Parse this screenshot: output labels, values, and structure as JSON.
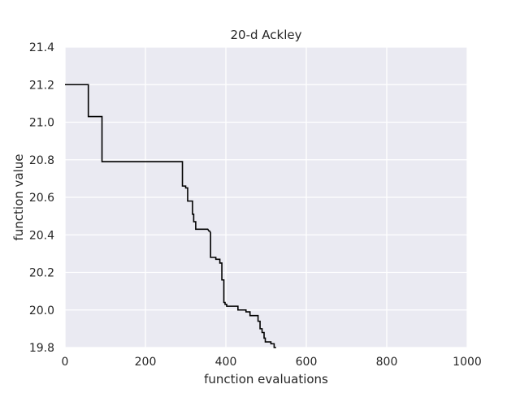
{
  "chart_data": {
    "type": "line",
    "title": "20-d Ackley",
    "xlabel": "function evaluations",
    "ylabel": "function value",
    "xlim": [
      0,
      1000
    ],
    "ylim": [
      19.8,
      21.4
    ],
    "xticks": [
      "0",
      "200",
      "400",
      "600",
      "800",
      "1000"
    ],
    "yticks": [
      "19.8",
      "20.0",
      "20.2",
      "20.4",
      "20.6",
      "20.8",
      "21.0",
      "21.2",
      "21.4"
    ],
    "grid": true,
    "legend": "none",
    "colors": {
      "line": "#000000",
      "background": "#eaeaf2",
      "grid": "#ffffff"
    },
    "series": [
      {
        "x": [
          0,
          58,
          58,
          92,
          92,
          292,
          292,
          300,
          300,
          305,
          305,
          317,
          317,
          320,
          320,
          325,
          325,
          355,
          358,
          360,
          362,
          362,
          375,
          375,
          385,
          385,
          390,
          390,
          395,
          395,
          398,
          398,
          402,
          402,
          430,
          430,
          450,
          450,
          460,
          460,
          480,
          480,
          485,
          485,
          490,
          490,
          495,
          495,
          498,
          498,
          512,
          512,
          520,
          520,
          525
        ],
        "y": [
          21.2,
          21.2,
          21.03,
          21.03,
          20.79,
          20.79,
          20.66,
          20.66,
          20.65,
          20.65,
          20.58,
          20.58,
          20.51,
          20.51,
          20.47,
          20.47,
          20.43,
          20.43,
          20.42,
          20.42,
          20.41,
          20.28,
          20.28,
          20.27,
          20.27,
          20.25,
          20.25,
          20.16,
          20.16,
          20.04,
          20.04,
          20.03,
          20.03,
          20.02,
          20.02,
          20.0,
          20.0,
          19.99,
          19.99,
          19.97,
          19.97,
          19.94,
          19.94,
          19.9,
          19.9,
          19.88,
          19.88,
          19.85,
          19.85,
          19.83,
          19.83,
          19.82,
          19.82,
          19.8,
          19.8
        ]
      }
    ]
  }
}
